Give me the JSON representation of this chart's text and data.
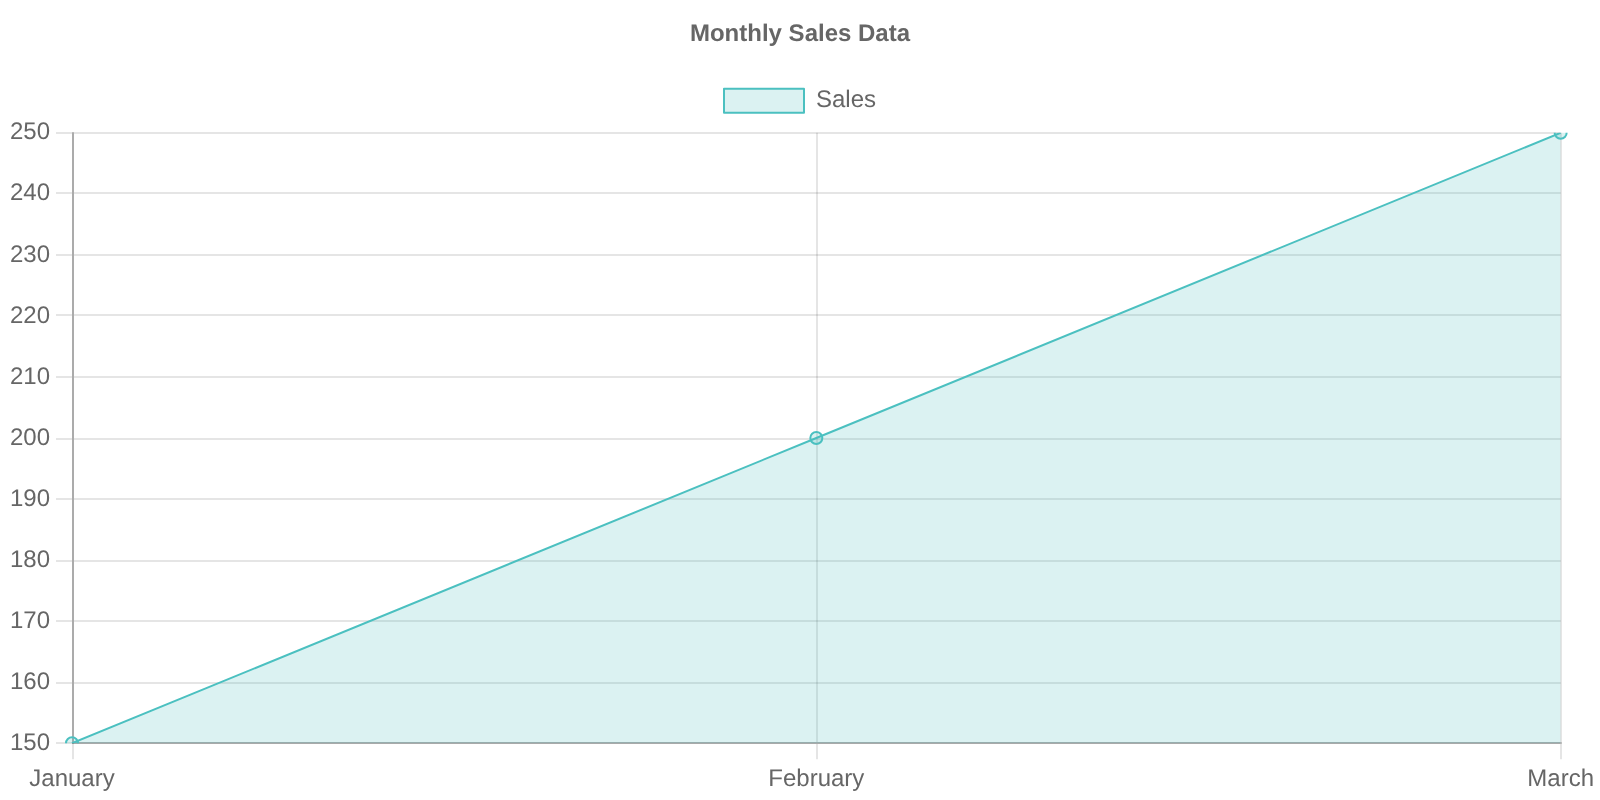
{
  "chart_data": {
    "type": "area",
    "title": "Monthly Sales Data",
    "categories": [
      "January",
      "February",
      "March"
    ],
    "series": [
      {
        "name": "Sales",
        "color": "#4bc0c0",
        "values": [
          150,
          200,
          250
        ]
      }
    ],
    "ylim": [
      150,
      250
    ],
    "yticks": [
      150,
      160,
      170,
      180,
      190,
      200,
      210,
      220,
      230,
      240,
      250
    ],
    "grid": true,
    "legend": "top",
    "marker": "circle"
  }
}
